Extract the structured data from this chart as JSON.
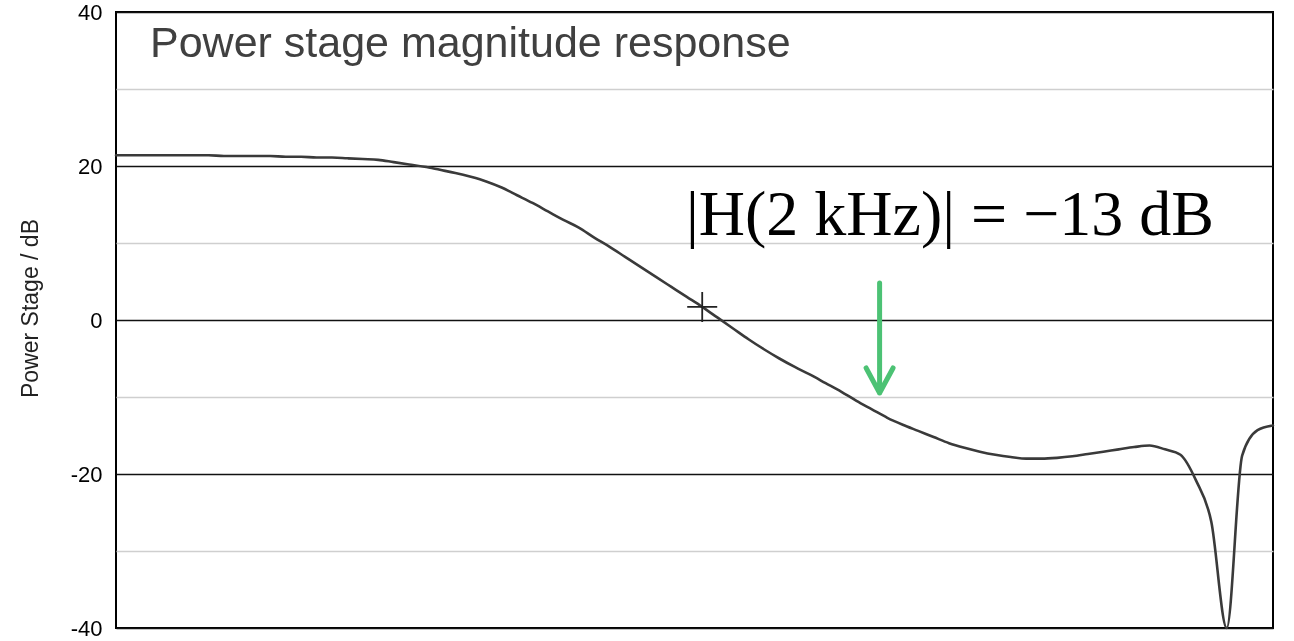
{
  "chart_data": {
    "type": "line",
    "title": "Power stage magnitude response",
    "ylabel": "Power Stage / dB",
    "categories": [
      null,
      null,
      null,
      null,
      null,
      null,
      null,
      null,
      null,
      null,
      null,
      null,
      null,
      null,
      null,
      null,
      null,
      null,
      null,
      null,
      null,
      null,
      null,
      null,
      null,
      null,
      null,
      null,
      null,
      null,
      null,
      null,
      null,
      null,
      null,
      null,
      null,
      null,
      null,
      null,
      null,
      null,
      null,
      null,
      null,
      null,
      null,
      null,
      null,
      null,
      null,
      null,
      null,
      null,
      null,
      null,
      null,
      null,
      null,
      null,
      null,
      null,
      null,
      null,
      null,
      null,
      null,
      null,
      null,
      null,
      null,
      null,
      null,
      null,
      null,
      null
    ],
    "series": [
      {
        "color": "#3a3a3a",
        "values": [
          21.4,
          21.4,
          21.4,
          21.4,
          21.4,
          21.4,
          21.4,
          21.3,
          21.3,
          21.3,
          21.3,
          21.2,
          21.2,
          21.1,
          21.1,
          21.0,
          20.9,
          20.8,
          20.5,
          20.2,
          19.9,
          19.5,
          19.1,
          18.6,
          18.0,
          17.2,
          16.2,
          15.2,
          14.1,
          13.0,
          12.0,
          10.7,
          9.5,
          8.2,
          6.9,
          5.6,
          4.3,
          3.0,
          1.7,
          0.3,
          -1.1,
          -2.5,
          -3.8,
          -5.0,
          -6.1,
          -7.1,
          -8.2,
          -9.3,
          -10.5,
          -11.6,
          -12.7,
          -13.6,
          -14.4,
          -15.2,
          -16.0,
          -16.6,
          -17.1,
          -17.5,
          -17.8,
          -18.0,
          -18.0,
          -17.9,
          -17.7,
          -17.4,
          -17.1,
          -16.8,
          -16.5,
          -16.3,
          -16.8,
          -17.5,
          -20.8,
          -26.2,
          -40,
          -17.6,
          -14.3,
          -13.7
        ]
      },
      {
        "type": "scatter",
        "color": "#222222",
        "marker": "cross",
        "values": [
          null,
          null,
          null,
          null,
          null,
          null,
          null,
          null,
          null,
          null,
          null,
          null,
          null,
          null,
          null,
          null,
          null,
          null,
          null,
          null,
          null,
          null,
          null,
          null,
          null,
          null,
          null,
          null,
          null,
          null,
          null,
          null,
          null,
          null,
          null,
          null,
          null,
          null,
          1.7,
          null,
          null,
          null,
          null,
          null,
          null,
          null,
          null,
          null,
          null,
          null,
          null,
          null,
          null,
          null,
          null,
          null,
          null,
          null,
          null,
          null,
          null,
          null,
          null,
          null,
          null,
          null,
          null,
          null,
          null,
          null,
          null,
          null,
          null,
          null,
          null,
          null
        ]
      }
    ],
    "annotations": [
      "|H(2 kHz)| = −13 dB"
    ],
    "ylim": [
      -40,
      40
    ],
    "yticks": [
      -40,
      {
        "value": -30,
        "label": null
      },
      -20,
      {
        "value": -10,
        "label": null
      },
      0,
      {
        "value": 10,
        "label": null
      },
      20,
      {
        "value": 30,
        "label": null
      },
      40
    ],
    "grid": "y"
  }
}
